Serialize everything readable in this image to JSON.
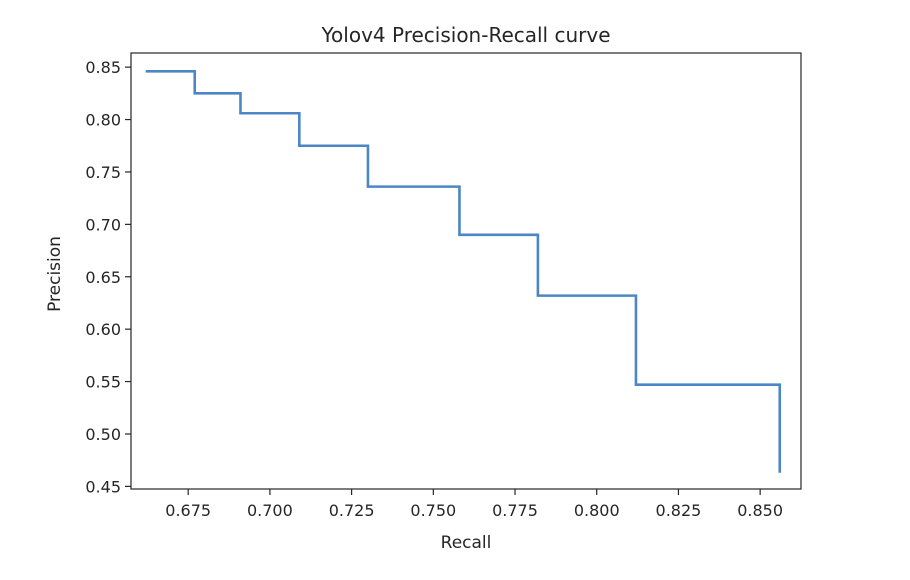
{
  "chart_data": {
    "type": "line",
    "step": true,
    "title": "Yolov4 Precision-Recall curve",
    "xlabel": "Recall",
    "ylabel": "Precision",
    "xlim": [
      0.6575,
      0.8625
    ],
    "ylim": [
      0.4475,
      0.8635
    ],
    "grid": false,
    "xticks": [
      0.675,
      0.7,
      0.725,
      0.75,
      0.775,
      0.8,
      0.825,
      0.85
    ],
    "xtick_labels": [
      "0.675",
      "0.700",
      "0.725",
      "0.750",
      "0.775",
      "0.800",
      "0.825",
      "0.850"
    ],
    "yticks": [
      0.45,
      0.5,
      0.55,
      0.6,
      0.65,
      0.7,
      0.75,
      0.8,
      0.85
    ],
    "ytick_labels": [
      "0.45",
      "0.50",
      "0.55",
      "0.60",
      "0.65",
      "0.70",
      "0.75",
      "0.80",
      "0.85"
    ],
    "line_color": "#4c86c4",
    "series": [
      {
        "x": [
          0.662,
          0.677,
          0.677,
          0.691,
          0.691,
          0.709,
          0.709,
          0.73,
          0.73,
          0.758,
          0.758,
          0.782,
          0.782,
          0.812,
          0.812,
          0.856,
          0.856
        ],
        "y": [
          0.846,
          0.846,
          0.825,
          0.825,
          0.806,
          0.806,
          0.775,
          0.775,
          0.736,
          0.736,
          0.69,
          0.69,
          0.632,
          0.632,
          0.547,
          0.547,
          0.463
        ]
      }
    ]
  }
}
